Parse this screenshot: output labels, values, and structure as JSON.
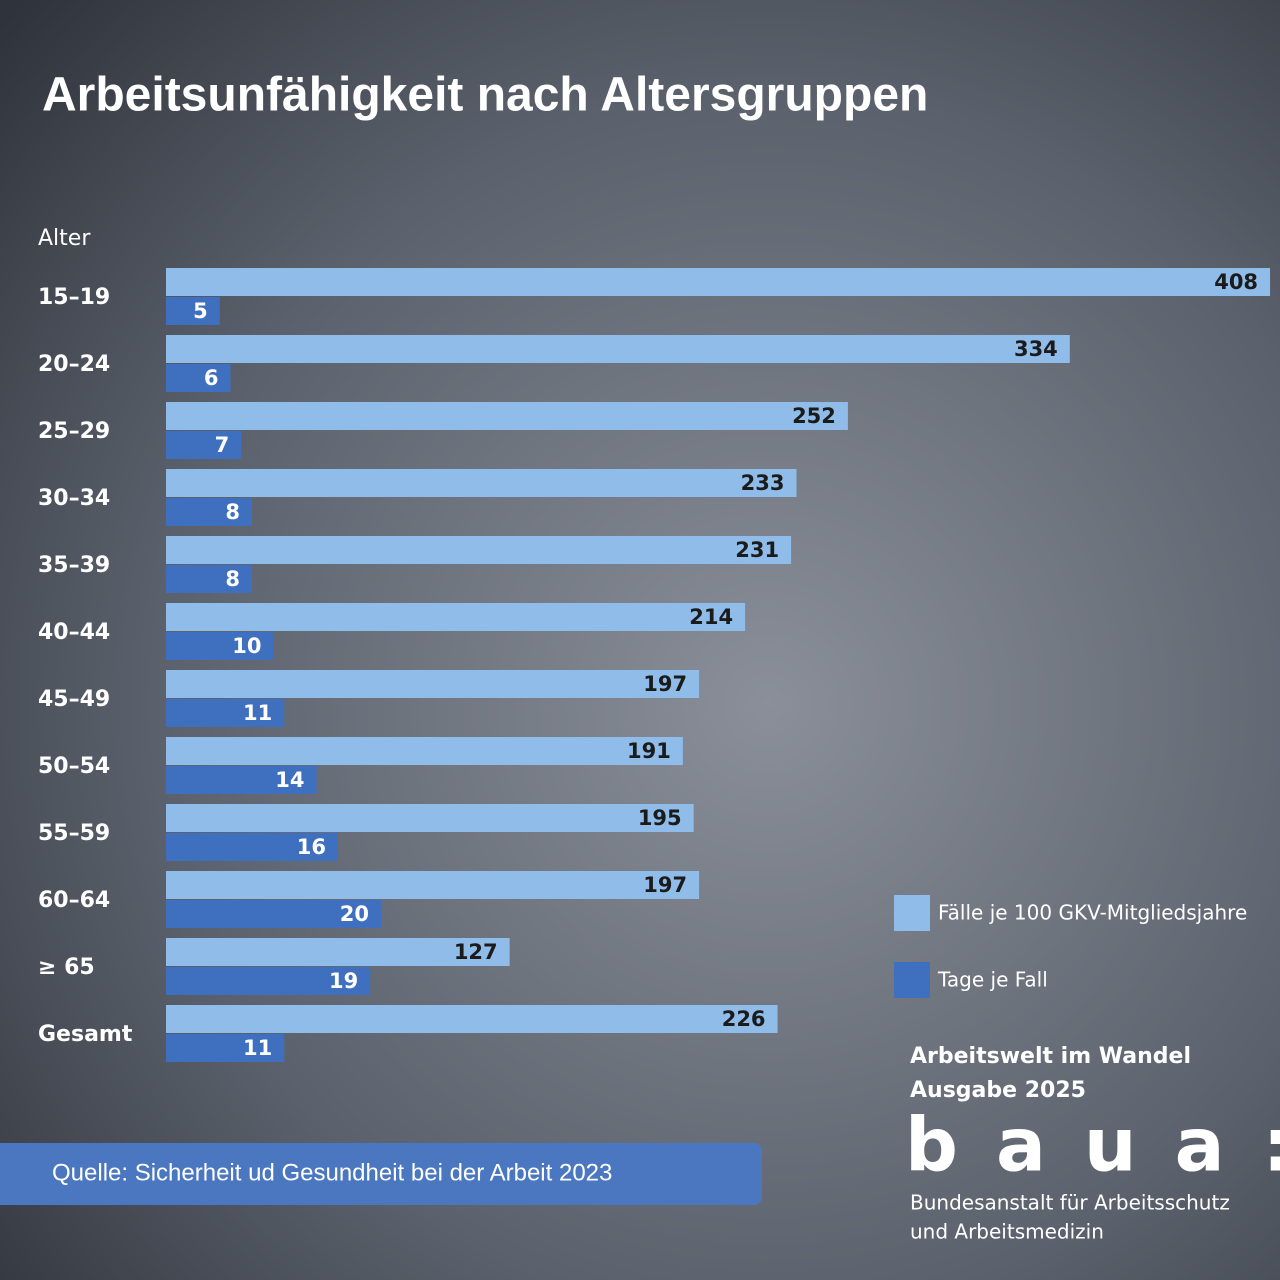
{
  "chart_data": {
    "type": "bar",
    "title": "Arbeitsunfähigkeit nach Altersgruppen",
    "y_axis_label": "Alter",
    "categories": [
      "15–19",
      "20–24",
      "25–29",
      "30–34",
      "35–39",
      "40–44",
      "45–49",
      "50–54",
      "55–59",
      "60–64",
      "≥ 65",
      "Gesamt"
    ],
    "series": [
      {
        "name": "Fälle je 100 GKV-Mitgliedsjahre",
        "color": "#8fbce9",
        "values": [
          408,
          334,
          252,
          233,
          231,
          214,
          197,
          191,
          195,
          197,
          127,
          226
        ]
      },
      {
        "name": "Tage je Fall",
        "color": "#3f6fbf",
        "values": [
          5,
          6,
          7,
          8,
          8,
          10,
          11,
          14,
          16,
          20,
          19,
          11
        ]
      }
    ],
    "source": "Quelle: Sicherheit ud Gesundheit bei der Arbeit 2023"
  },
  "publication": {
    "series_title": "Arbeitswelt im Wandel",
    "edition": "Ausgabe 2025",
    "logo": "baua:",
    "institution_line1": "Bundesanstalt für Arbeitsschutz",
    "institution_line2": "und Arbeitsmedizin"
  }
}
